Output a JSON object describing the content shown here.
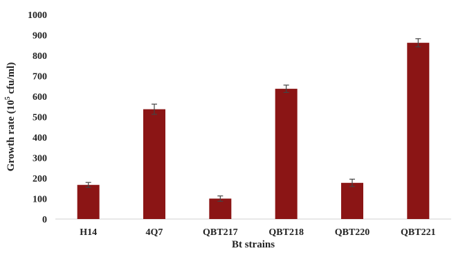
{
  "chart_data": {
    "type": "bar",
    "title": "",
    "xlabel": "Bt strains",
    "ylabel": {
      "prefix": "Growth rate (10",
      "superscript": "5",
      "suffix": " cfu/ml)"
    },
    "ylim": [
      0,
      1000
    ],
    "yticks": [
      "0",
      "100",
      "200",
      "300",
      "400",
      "500",
      "600",
      "700",
      "800",
      "900",
      "1000"
    ],
    "grid": false,
    "legend": "none",
    "categories": [
      "H14",
      "4Q7",
      "QBT217",
      "QBT218",
      "QBT220",
      "QBT221"
    ],
    "values": [
      167,
      537,
      100,
      637,
      177,
      862
    ],
    "errors": [
      12,
      25,
      13,
      18,
      18,
      20
    ],
    "bar_color": "#8b1515",
    "error_color": "#444444"
  }
}
